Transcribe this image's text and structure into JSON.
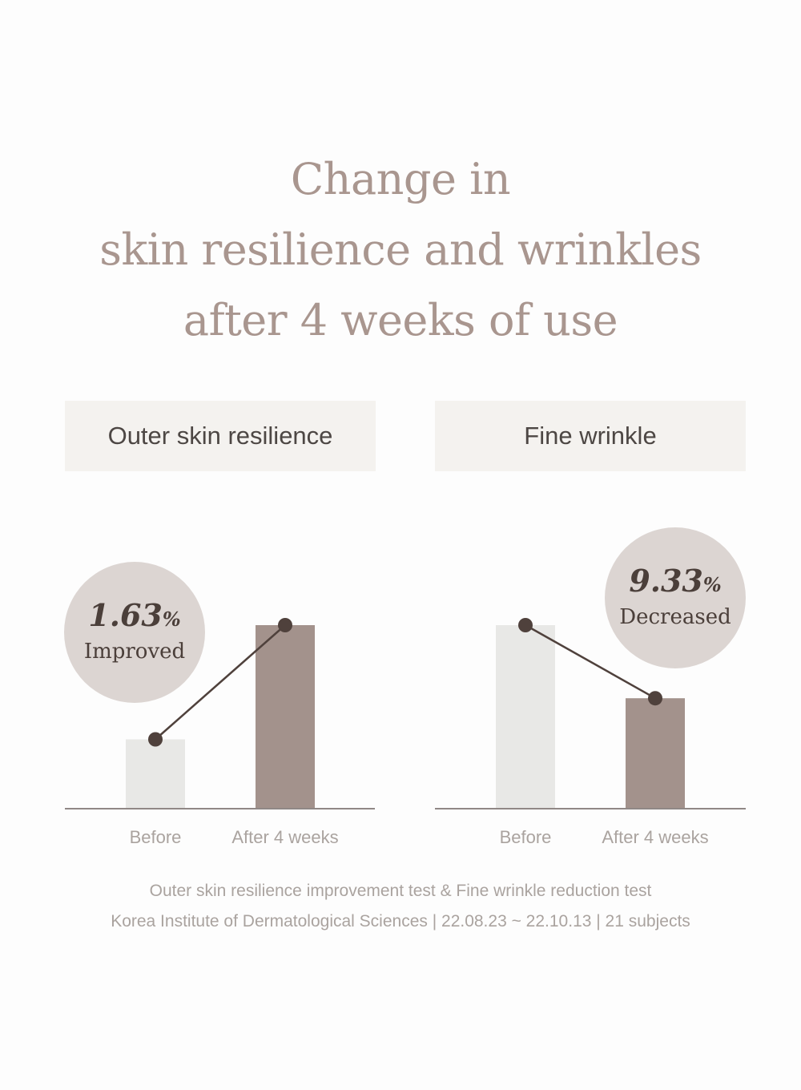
{
  "title_lines": [
    "Change in",
    "skin resilience and wrinkles",
    "after 4 weeks of use"
  ],
  "footnote": {
    "line1": "Outer skin resilience improvement test & Fine wrinkle reduction test",
    "line2": "Korea Institute of Dermatological Sciences | 22.08.23 ~ 22.10.13 | 21 subjects"
  },
  "colors": {
    "title": "#a9968f",
    "before_bar": "#e8e8e6",
    "after_bar": "#a3928c",
    "line": "#4f413c",
    "badge": "#dcd5d2",
    "header_bg": "#f4f2ef"
  },
  "chart_data": [
    {
      "type": "bar",
      "title": "Outer skin resilience",
      "categories": [
        "Before",
        "After 4 weeks"
      ],
      "values": [
        0.375,
        1.0
      ],
      "badge": {
        "value": "1.63",
        "unit": "%",
        "label": "Improved"
      }
    },
    {
      "type": "bar",
      "title": "Fine wrinkle",
      "categories": [
        "Before",
        "After 4 weeks"
      ],
      "values": [
        1.0,
        0.6
      ],
      "badge": {
        "value": "9.33",
        "unit": "%",
        "label": "Decreased"
      }
    }
  ]
}
